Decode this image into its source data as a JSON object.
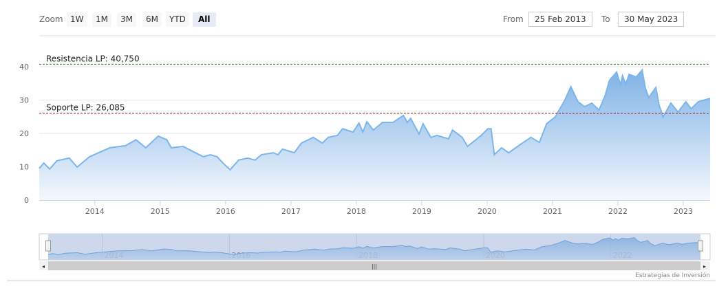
{
  "range_selector": {
    "zoom_label": "Zoom",
    "buttons": [
      "1W",
      "1M",
      "3M",
      "6M",
      "YTD",
      "All"
    ],
    "selected": "All",
    "from_label": "From",
    "from_value": "25 Feb 2013",
    "to_label": "To",
    "to_value": "30 May 2023"
  },
  "credits": "Estrategias de Inversión",
  "navigator": {
    "labels": [
      "2014",
      "2016",
      "2018",
      "2020",
      "2022"
    ]
  },
  "colors": {
    "line": "#7cb5ec",
    "fill_top": "#8ab8e6",
    "fill_bottom": "#f2f7fd",
    "resistance": "#2e7d32",
    "support": "#8b1a1a"
  },
  "chart_data": {
    "type": "area",
    "ylim": [
      0,
      40
    ],
    "yticks": [
      "0",
      "10",
      "20",
      "30",
      "40"
    ],
    "xticks": [
      "2014",
      "2015",
      "2016",
      "2017",
      "2018",
      "2019",
      "2020",
      "2021",
      "2022",
      "2023"
    ],
    "xlim": [
      2013.15,
      2023.41
    ],
    "plot_lines": [
      {
        "label": "Resistencia LP: 40,750",
        "value": 40.75
      },
      {
        "label": "Soporte LP: 26,085",
        "value": 26.085
      }
    ],
    "series": [
      {
        "name": "price",
        "x": [
          2013.15,
          2013.22,
          2013.31,
          2013.42,
          2013.61,
          2013.73,
          2013.92,
          2014.23,
          2014.47,
          2014.63,
          2014.78,
          2014.97,
          2015.1,
          2015.17,
          2015.35,
          2015.52,
          2015.66,
          2015.77,
          2015.87,
          2015.97,
          2016.07,
          2016.2,
          2016.34,
          2016.45,
          2016.55,
          2016.73,
          2016.8,
          2016.87,
          2017.05,
          2017.16,
          2017.34,
          2017.48,
          2017.57,
          2017.71,
          2017.79,
          2017.95,
          2018.04,
          2018.1,
          2018.16,
          2018.26,
          2018.4,
          2018.56,
          2018.72,
          2018.78,
          2018.83,
          2018.96,
          2019.02,
          2019.14,
          2019.23,
          2019.41,
          2019.47,
          2019.62,
          2019.7,
          2019.91,
          2020.01,
          2020.06,
          2020.11,
          2020.22,
          2020.33,
          2020.51,
          2020.67,
          2020.8,
          2020.91,
          2021.04,
          2021.18,
          2021.28,
          2021.39,
          2021.49,
          2021.6,
          2021.71,
          2021.8,
          2021.87,
          2021.98,
          2022.04,
          2022.07,
          2022.12,
          2022.17,
          2022.28,
          2022.37,
          2022.42,
          2022.47,
          2022.58,
          2022.63,
          2022.69,
          2022.81,
          2022.92,
          2023.04,
          2023.12,
          2023.23,
          2023.41
        ],
        "y": [
          9.5,
          11.1,
          9.3,
          11.8,
          12.6,
          9.9,
          13,
          15.7,
          16.3,
          18.1,
          15.7,
          19.2,
          18.1,
          15.7,
          16.1,
          14.4,
          13,
          13.6,
          13,
          10.9,
          9.1,
          12,
          12.6,
          12,
          13.6,
          14.2,
          13.6,
          15.3,
          14.2,
          17.1,
          18.8,
          17.1,
          18.8,
          19.4,
          21.4,
          20.4,
          23.1,
          20.4,
          23.5,
          21,
          23.3,
          23.3,
          25.4,
          23.3,
          24.5,
          19.8,
          22.9,
          18.8,
          19.4,
          18.4,
          21,
          18.8,
          16.1,
          19.4,
          21.4,
          21.4,
          13.6,
          15.7,
          14.2,
          16.7,
          18.8,
          17.3,
          22.9,
          24.9,
          29.7,
          34,
          29.5,
          28,
          29.1,
          27,
          31.1,
          35.9,
          38.4,
          34.6,
          37.3,
          34.8,
          37.7,
          36.9,
          39,
          33.6,
          30.7,
          33.8,
          28.5,
          24.9,
          29.1,
          26.4,
          29.5,
          27.4,
          29.5,
          30.5
        ]
      }
    ]
  }
}
